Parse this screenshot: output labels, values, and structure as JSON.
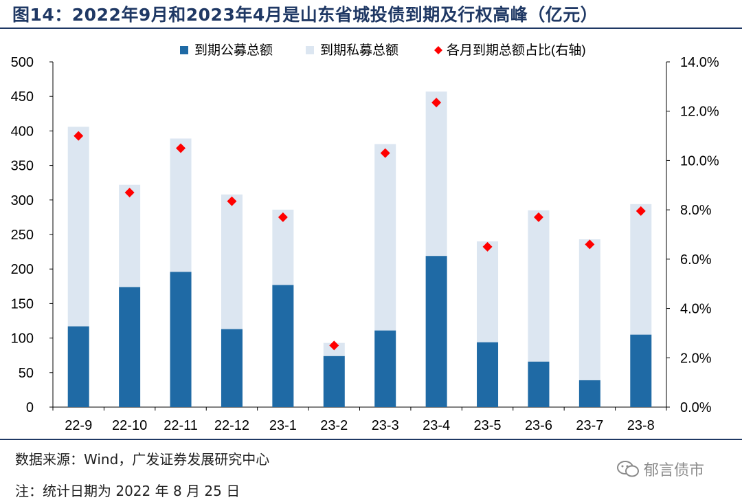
{
  "header": {
    "title": "图14：2022年9月和2023年4月是山东省城投债到期及行权高峰（亿元）"
  },
  "footer": {
    "source": "数据来源：Wind，广发证券发展研究中心",
    "note": "注：统计日期为 2022 年 8 月 25 日",
    "watermark": "郁言债市"
  },
  "colors": {
    "public": "#1f6aa5",
    "private": "#dce6f1",
    "ratio": "#ff0000",
    "title": "#1f3864"
  },
  "chart_data": {
    "type": "bar",
    "stacked": true,
    "title": "2022年9月和2023年4月是山东省城投债到期及行权高峰（亿元）",
    "categories": [
      "22-9",
      "22-10",
      "22-11",
      "22-12",
      "23-1",
      "23-2",
      "23-3",
      "23-4",
      "23-5",
      "23-6",
      "23-7",
      "23-8"
    ],
    "series": [
      {
        "name": "到期公募总额",
        "type": "bar",
        "axis": "left",
        "values": [
          117,
          174,
          196,
          113,
          177,
          74,
          111,
          219,
          94,
          66,
          39,
          105
        ]
      },
      {
        "name": "到期私募总额",
        "type": "bar",
        "axis": "left",
        "values": [
          289,
          148,
          193,
          195,
          109,
          19,
          270,
          238,
          146,
          219,
          204,
          189
        ]
      },
      {
        "name": "各月到期总额占比(右轴)",
        "type": "scatter",
        "marker": "diamond",
        "axis": "right",
        "values": [
          11.0,
          8.7,
          10.5,
          8.35,
          7.7,
          2.5,
          10.3,
          12.35,
          6.5,
          7.7,
          6.6,
          7.95
        ]
      }
    ],
    "left_axis": {
      "min": 0,
      "max": 500,
      "step": 50,
      "ticks": [
        "0",
        "50",
        "100",
        "150",
        "200",
        "250",
        "300",
        "350",
        "400",
        "450",
        "500"
      ]
    },
    "right_axis": {
      "min": 0,
      "max": 14,
      "step": 2,
      "ticks": [
        "0.0%",
        "2.0%",
        "4.0%",
        "6.0%",
        "8.0%",
        "10.0%",
        "12.0%",
        "14.0%"
      ]
    },
    "legend_position": "top",
    "grid": false
  }
}
